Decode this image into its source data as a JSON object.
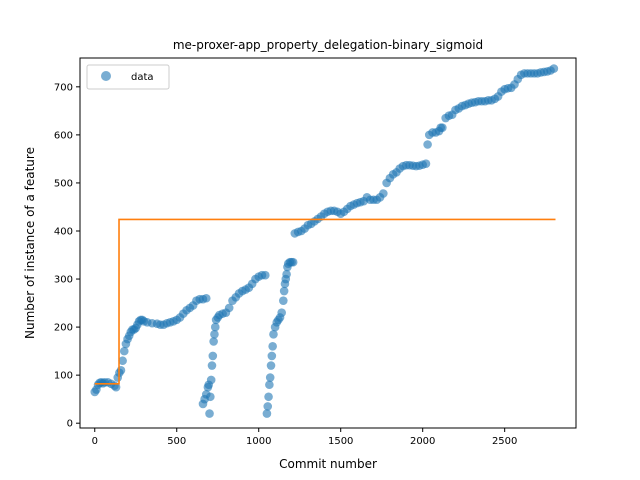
{
  "chart_data": {
    "type": "scatter",
    "title": "me-proxer-app_property_delegation-binary_sigmoid",
    "xlabel": "Commit number",
    "ylabel": "Number of instance of a feature",
    "xlim": [
      -90,
      2935
    ],
    "ylim": [
      -10,
      760
    ],
    "xticks": [
      0,
      500,
      1000,
      1500,
      2000,
      2500
    ],
    "yticks": [
      0,
      100,
      200,
      300,
      400,
      500,
      600,
      700
    ],
    "grid": false,
    "legend": {
      "position": "top-left",
      "entries": [
        "data"
      ]
    },
    "series": [
      {
        "name": "data",
        "kind": "scatter",
        "color": "#1f77b4",
        "alpha": 0.6,
        "points": [
          [
            0,
            65
          ],
          [
            10,
            70
          ],
          [
            20,
            80
          ],
          [
            30,
            84
          ],
          [
            40,
            85
          ],
          [
            50,
            83
          ],
          [
            60,
            85
          ],
          [
            80,
            85
          ],
          [
            100,
            82
          ],
          [
            120,
            78
          ],
          [
            130,
            75
          ],
          [
            140,
            95
          ],
          [
            150,
            105
          ],
          [
            160,
            110
          ],
          [
            170,
            130
          ],
          [
            180,
            150
          ],
          [
            190,
            165
          ],
          [
            200,
            175
          ],
          [
            210,
            182
          ],
          [
            220,
            190
          ],
          [
            230,
            195
          ],
          [
            240,
            195
          ],
          [
            250,
            198
          ],
          [
            260,
            205
          ],
          [
            270,
            212
          ],
          [
            280,
            215
          ],
          [
            290,
            215
          ],
          [
            300,
            212
          ],
          [
            320,
            210
          ],
          [
            350,
            208
          ],
          [
            380,
            207
          ],
          [
            400,
            205
          ],
          [
            420,
            205
          ],
          [
            440,
            208
          ],
          [
            460,
            210
          ],
          [
            480,
            212
          ],
          [
            500,
            215
          ],
          [
            520,
            220
          ],
          [
            540,
            228
          ],
          [
            560,
            235
          ],
          [
            580,
            240
          ],
          [
            600,
            245
          ],
          [
            620,
            255
          ],
          [
            640,
            258
          ],
          [
            660,
            258
          ],
          [
            680,
            260
          ],
          [
            660,
            40
          ],
          [
            670,
            50
          ],
          [
            680,
            60
          ],
          [
            690,
            75
          ],
          [
            695,
            80
          ],
          [
            700,
            20
          ],
          [
            705,
            55
          ],
          [
            710,
            90
          ],
          [
            715,
            120
          ],
          [
            720,
            140
          ],
          [
            725,
            170
          ],
          [
            730,
            185
          ],
          [
            735,
            200
          ],
          [
            740,
            215
          ],
          [
            750,
            220
          ],
          [
            760,
            225
          ],
          [
            780,
            228
          ],
          [
            800,
            230
          ],
          [
            820,
            240
          ],
          [
            840,
            255
          ],
          [
            860,
            262
          ],
          [
            880,
            270
          ],
          [
            900,
            275
          ],
          [
            920,
            278
          ],
          [
            940,
            282
          ],
          [
            960,
            290
          ],
          [
            980,
            300
          ],
          [
            1000,
            305
          ],
          [
            1020,
            308
          ],
          [
            1040,
            308
          ],
          [
            1050,
            20
          ],
          [
            1055,
            35
          ],
          [
            1060,
            55
          ],
          [
            1065,
            80
          ],
          [
            1070,
            95
          ],
          [
            1075,
            120
          ],
          [
            1080,
            140
          ],
          [
            1085,
            160
          ],
          [
            1090,
            185
          ],
          [
            1100,
            200
          ],
          [
            1110,
            210
          ],
          [
            1120,
            215
          ],
          [
            1130,
            220
          ],
          [
            1140,
            230
          ],
          [
            1150,
            255
          ],
          [
            1155,
            275
          ],
          [
            1160,
            290
          ],
          [
            1165,
            300
          ],
          [
            1170,
            310
          ],
          [
            1175,
            325
          ],
          [
            1180,
            332
          ],
          [
            1190,
            335
          ],
          [
            1200,
            335
          ],
          [
            1210,
            335
          ],
          [
            1220,
            395
          ],
          [
            1240,
            398
          ],
          [
            1260,
            400
          ],
          [
            1280,
            405
          ],
          [
            1300,
            412
          ],
          [
            1320,
            415
          ],
          [
            1340,
            420
          ],
          [
            1360,
            425
          ],
          [
            1380,
            430
          ],
          [
            1400,
            436
          ],
          [
            1420,
            440
          ],
          [
            1440,
            442
          ],
          [
            1460,
            442
          ],
          [
            1480,
            440
          ],
          [
            1500,
            436
          ],
          [
            1520,
            440
          ],
          [
            1540,
            446
          ],
          [
            1560,
            452
          ],
          [
            1580,
            455
          ],
          [
            1600,
            458
          ],
          [
            1620,
            460
          ],
          [
            1640,
            462
          ],
          [
            1660,
            470
          ],
          [
            1680,
            465
          ],
          [
            1700,
            465
          ],
          [
            1720,
            465
          ],
          [
            1740,
            470
          ],
          [
            1760,
            478
          ],
          [
            1780,
            500
          ],
          [
            1800,
            510
          ],
          [
            1820,
            518
          ],
          [
            1840,
            522
          ],
          [
            1860,
            530
          ],
          [
            1880,
            535
          ],
          [
            1900,
            537
          ],
          [
            1920,
            537
          ],
          [
            1940,
            536
          ],
          [
            1960,
            535
          ],
          [
            1980,
            536
          ],
          [
            2000,
            538
          ],
          [
            2020,
            540
          ],
          [
            2030,
            580
          ],
          [
            2040,
            600
          ],
          [
            2060,
            605
          ],
          [
            2080,
            605
          ],
          [
            2100,
            608
          ],
          [
            2110,
            615
          ],
          [
            2120,
            615
          ],
          [
            2140,
            635
          ],
          [
            2160,
            640
          ],
          [
            2180,
            642
          ],
          [
            2200,
            652
          ],
          [
            2220,
            655
          ],
          [
            2240,
            660
          ],
          [
            2260,
            662
          ],
          [
            2280,
            665
          ],
          [
            2300,
            667
          ],
          [
            2320,
            668
          ],
          [
            2340,
            670
          ],
          [
            2360,
            670
          ],
          [
            2380,
            670
          ],
          [
            2400,
            672
          ],
          [
            2420,
            672
          ],
          [
            2440,
            675
          ],
          [
            2460,
            680
          ],
          [
            2480,
            690
          ],
          [
            2500,
            695
          ],
          [
            2520,
            697
          ],
          [
            2540,
            698
          ],
          [
            2560,
            705
          ],
          [
            2580,
            716
          ],
          [
            2600,
            725
          ],
          [
            2620,
            728
          ],
          [
            2640,
            728
          ],
          [
            2660,
            728
          ],
          [
            2680,
            728
          ],
          [
            2700,
            728
          ],
          [
            2720,
            730
          ],
          [
            2740,
            731
          ],
          [
            2760,
            732
          ],
          [
            2780,
            734
          ],
          [
            2800,
            738
          ]
        ]
      },
      {
        "kind": "line",
        "color": "#ff7f0e",
        "points": [
          [
            0,
            82
          ],
          [
            148,
            82
          ],
          [
            148,
            424
          ],
          [
            2810,
            424
          ]
        ]
      }
    ]
  }
}
